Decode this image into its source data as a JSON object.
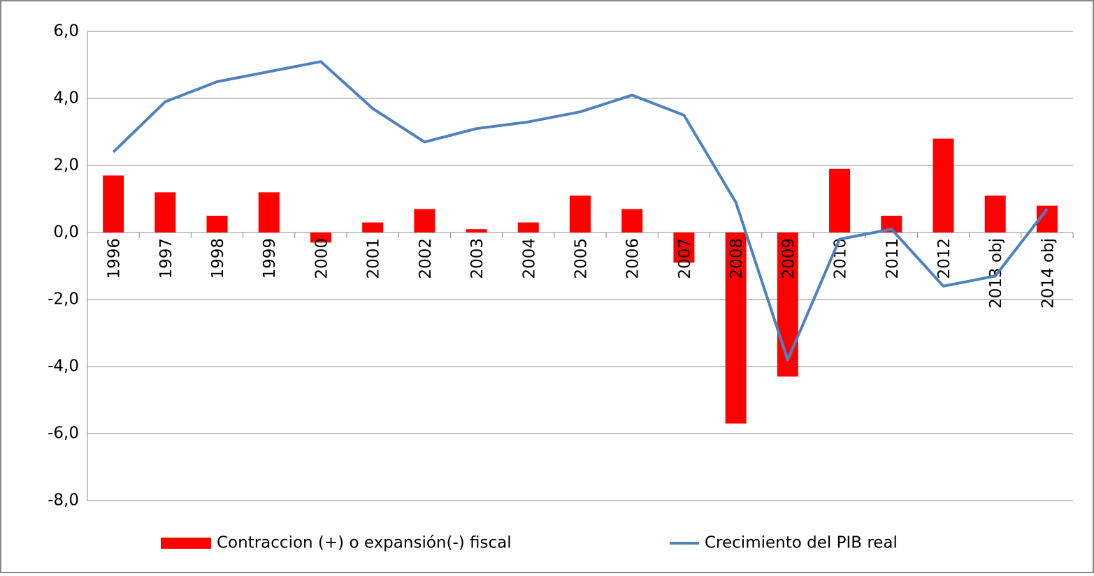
{
  "chart_data": {
    "type": "bar_line",
    "categories": [
      "1996",
      "1997",
      "1998",
      "1999",
      "2000",
      "2001",
      "2002",
      "2003",
      "2004",
      "2005",
      "2006",
      "2007",
      "2008",
      "2009",
      "2010",
      "2011",
      "2012",
      "2013 obj",
      "2014 obj"
    ],
    "series": [
      {
        "name": "Contraccion (+) o expansión(-) fiscal",
        "type": "bar",
        "color": "#ff0000",
        "values": [
          1.7,
          1.2,
          0.5,
          1.2,
          -0.3,
          0.3,
          0.7,
          0.1,
          0.3,
          1.1,
          0.7,
          -0.9,
          -5.7,
          -4.3,
          1.9,
          0.5,
          2.8,
          1.1,
          0.8
        ]
      },
      {
        "name": "Crecimiento del PIB real",
        "type": "line",
        "color": "#4f81bd",
        "values": [
          2.4,
          3.9,
          4.5,
          4.8,
          5.1,
          3.7,
          2.7,
          3.1,
          3.3,
          3.6,
          4.1,
          3.5,
          0.9,
          -3.8,
          -0.2,
          0.1,
          -1.6,
          -1.3,
          0.7
        ]
      }
    ],
    "ylim": [
      -8,
      6
    ],
    "yticks": [
      {
        "value": -8,
        "label": "-8,0"
      },
      {
        "value": -6,
        "label": "-6,0"
      },
      {
        "value": -4,
        "label": "-4,0"
      },
      {
        "value": -2,
        "label": "-2,0"
      },
      {
        "value": 0,
        "label": "0,0"
      },
      {
        "value": 2,
        "label": "2,0"
      },
      {
        "value": 4,
        "label": "4,0"
      },
      {
        "value": 6,
        "label": "6,0"
      }
    ],
    "grid": true,
    "legend": "bottom"
  }
}
